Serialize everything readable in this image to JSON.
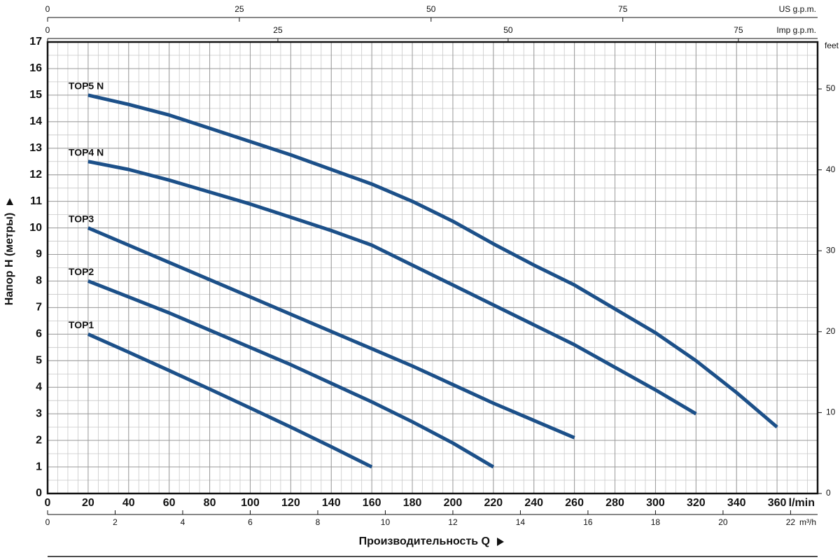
{
  "chart_data": {
    "type": "line",
    "y_label": "Напор H (метры)",
    "x_label": "Производительность Q",
    "x_unit": "l/min",
    "xlim": [
      0,
      380
    ],
    "xticks": [
      0,
      20,
      40,
      60,
      80,
      100,
      120,
      140,
      160,
      180,
      200,
      220,
      240,
      260,
      280,
      300,
      320,
      340,
      360
    ],
    "ylim": [
      0,
      17
    ],
    "yticks": [
      0,
      1,
      2,
      3,
      4,
      5,
      6,
      7,
      8,
      9,
      10,
      11,
      12,
      13,
      14,
      15,
      16,
      17
    ],
    "grid": true,
    "minor_grid": {
      "x": 5,
      "y": 0.5
    },
    "x2_unit": "m³/h",
    "x2lim": [
      0,
      22.8
    ],
    "x2ticks": [
      0,
      2,
      4,
      6,
      8,
      10,
      12,
      14,
      16,
      18,
      20,
      22
    ],
    "x3_unit": "US g.p.m.",
    "x3lim": [
      0,
      100.4
    ],
    "x3ticks": [
      0,
      25,
      50,
      75
    ],
    "x4_unit": "Imp g.p.m.",
    "x4lim": [
      0,
      83.6
    ],
    "x4ticks": [
      0,
      25,
      50,
      75
    ],
    "y2_unit": "feet",
    "y2lim": [
      0,
      55.8
    ],
    "y2ticks": [
      0,
      10,
      20,
      30,
      40,
      50
    ],
    "series": [
      {
        "name": "TOP5 N",
        "color": "#1c5089",
        "x": [
          20,
          40,
          60,
          80,
          100,
          120,
          140,
          160,
          180,
          200,
          220,
          240,
          260,
          280,
          300,
          320,
          340,
          360
        ],
        "values": [
          15,
          14.65,
          14.25,
          13.75,
          13.25,
          12.75,
          12.2,
          11.65,
          11.0,
          10.25,
          9.4,
          8.6,
          7.85,
          6.95,
          6.05,
          5.0,
          3.8,
          2.5
        ]
      },
      {
        "name": "TOP4 N",
        "color": "#1c5089",
        "x": [
          20,
          40,
          60,
          80,
          100,
          120,
          140,
          160,
          180,
          200,
          220,
          240,
          260,
          280,
          300,
          320
        ],
        "values": [
          12.5,
          12.2,
          11.8,
          11.35,
          10.9,
          10.4,
          9.9,
          9.35,
          8.6,
          7.85,
          7.1,
          6.35,
          5.6,
          4.75,
          3.9,
          3.0
        ]
      },
      {
        "name": "TOP3",
        "color": "#1c5089",
        "x": [
          20,
          40,
          60,
          80,
          100,
          120,
          140,
          160,
          180,
          200,
          220,
          240,
          260
        ],
        "values": [
          10,
          9.35,
          8.7,
          8.05,
          7.4,
          6.75,
          6.1,
          5.45,
          4.8,
          4.1,
          3.4,
          2.75,
          2.1
        ]
      },
      {
        "name": "TOP2",
        "color": "#1c5089",
        "x": [
          20,
          40,
          60,
          80,
          100,
          120,
          140,
          160,
          180,
          200,
          220
        ],
        "values": [
          8,
          7.4,
          6.8,
          6.15,
          5.5,
          4.85,
          4.15,
          3.45,
          2.7,
          1.9,
          1.0
        ]
      },
      {
        "name": "TOP1",
        "color": "#1c5089",
        "x": [
          20,
          40,
          60,
          80,
          100,
          120,
          140,
          160
        ],
        "values": [
          6,
          5.32,
          4.63,
          3.93,
          3.22,
          2.5,
          1.76,
          1.0
        ]
      }
    ]
  }
}
